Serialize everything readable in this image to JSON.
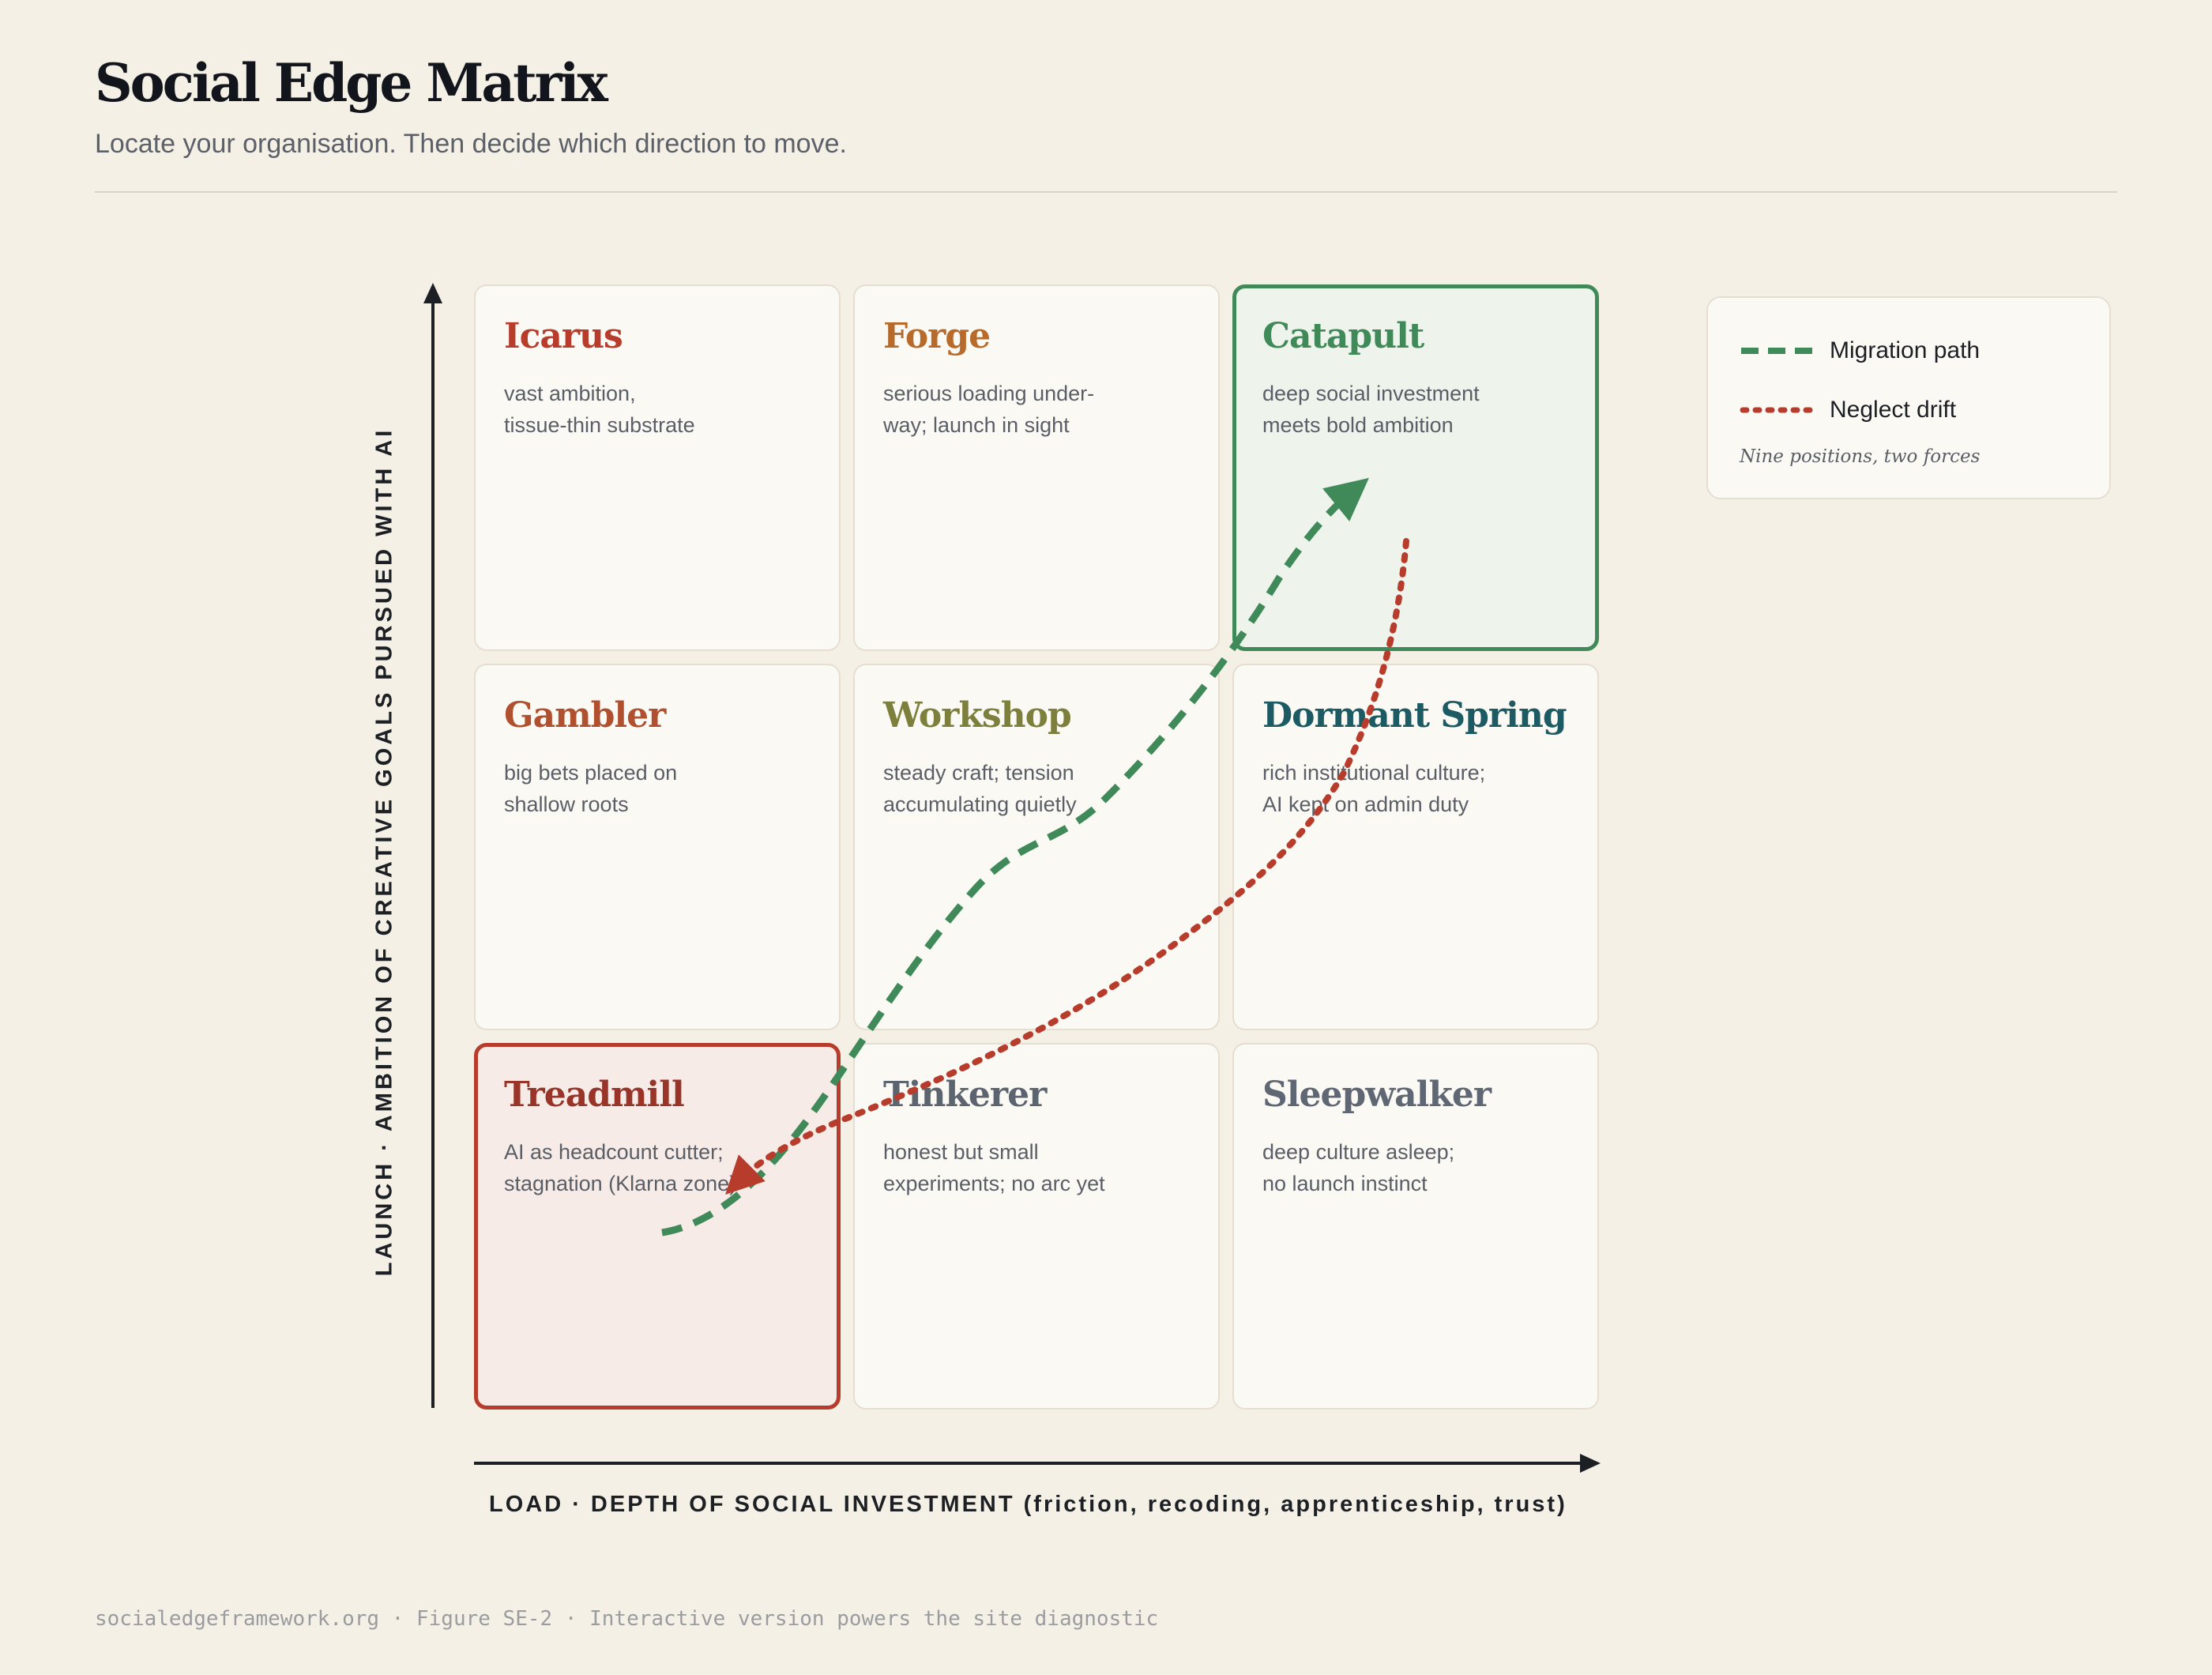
{
  "header": {
    "title": "Social Edge Matrix",
    "subtitle": "Locate your organisation. Then decide which direction to move."
  },
  "axes": {
    "y_label": "LAUNCH · AMBITION OF CREATIVE GOALS PURSUED WITH AI",
    "x_label": "LOAD · DEPTH OF SOCIAL INVESTMENT (friction, recoding, apprenticeship, trust)"
  },
  "cells": [
    {
      "name": "Icarus",
      "desc": [
        "vast ambition,",
        "tissue-thin substrate"
      ],
      "color": "#b83c2c",
      "row": "top",
      "col": "left",
      "highlight": "none"
    },
    {
      "name": "Forge",
      "desc": [
        "serious loading under-",
        "way; launch in sight"
      ],
      "color": "#b86a2a",
      "row": "top",
      "col": "middle",
      "highlight": "none"
    },
    {
      "name": "Catapult",
      "desc": [
        "deep social investment",
        "meets bold ambition"
      ],
      "color": "#3f8a58",
      "row": "top",
      "col": "right",
      "highlight": "green"
    },
    {
      "name": "Gambler",
      "desc": [
        "big bets placed on",
        "shallow roots"
      ],
      "color": "#b0502e",
      "row": "middle",
      "col": "left",
      "highlight": "none"
    },
    {
      "name": "Workshop",
      "desc": [
        "steady craft; tension",
        "accumulating quietly"
      ],
      "color": "#7d7f3c",
      "row": "middle",
      "col": "middle",
      "highlight": "none"
    },
    {
      "name": "Dormant Spring",
      "desc": [
        "rich institutional culture;",
        "AI kept on admin duty"
      ],
      "color": "#1c5a64",
      "row": "middle",
      "col": "right",
      "highlight": "none"
    },
    {
      "name": "Treadmill",
      "desc": [
        "AI as headcount cutter;",
        "stagnation (Klarna zone)"
      ],
      "color": "#983528",
      "row": "bottom",
      "col": "left",
      "highlight": "red"
    },
    {
      "name": "Tinkerer",
      "desc": [
        "honest but small",
        "experiments; no arc yet"
      ],
      "color": "#5c6470",
      "row": "bottom",
      "col": "middle",
      "highlight": "none"
    },
    {
      "name": "Sleepwalker",
      "desc": [
        "deep culture asleep;",
        "no launch instinct"
      ],
      "color": "#5f6775",
      "row": "bottom",
      "col": "right",
      "highlight": "none"
    }
  ],
  "legend": {
    "migration_label": "Migration path",
    "neglect_label": "Neglect drift",
    "note": "Nine positions, two forces"
  },
  "paths": {
    "migration": {
      "color": "#3f8a58",
      "style": "dashed",
      "from": "Treadmill",
      "to": "Catapult"
    },
    "neglect": {
      "color": "#b83c2c",
      "style": "dotted",
      "from": "Catapult",
      "to": "Treadmill"
    }
  },
  "footer": "socialedgeframework.org · Figure SE-2 · Interactive version powers the site diagnostic"
}
